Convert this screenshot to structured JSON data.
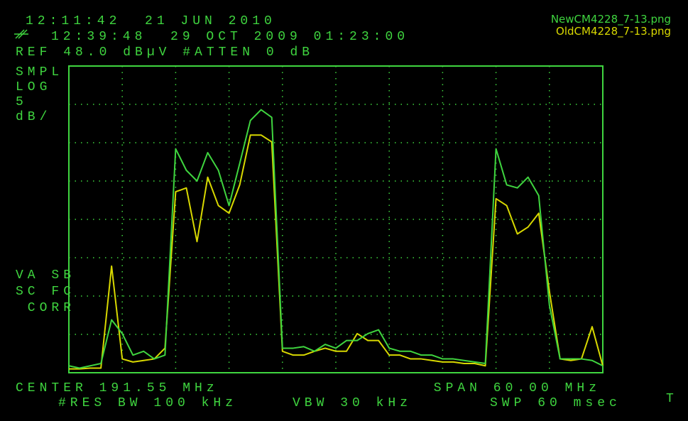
{
  "chart_data": {
    "type": "line",
    "header": {
      "time": "12:11:42  21 JUN 2010",
      "saved": "12:39:48  29 OCT 2009 01:23:00",
      "ref": "REF 48.0 dBµV #ATTEN 0 dB"
    },
    "left_labels": [
      "SMPL",
      "LOG",
      "5",
      "dB/",
      "VA SB",
      "SC FC",
      " CORR"
    ],
    "footer": {
      "center": "CENTER 191.55 MHz",
      "span": "SPAN 60.00 MHz",
      "rbw": "#RES BW 100 kHz",
      "vbw": "VBW 30 kHz",
      "sweep": "SWP 60 msec",
      "marker": "T"
    },
    "x": [
      161.55,
      162.75,
      163.95,
      165.15,
      166.35,
      167.55,
      168.75,
      169.95,
      171.15,
      172.35,
      173.55,
      174.75,
      175.95,
      177.15,
      178.35,
      179.55,
      180.75,
      181.95,
      183.15,
      184.35,
      185.55,
      186.75,
      187.95,
      189.15,
      190.35,
      191.55,
      192.75,
      193.95,
      195.15,
      196.35,
      197.55,
      198.75,
      199.95,
      201.15,
      202.35,
      203.55,
      204.75,
      205.95,
      207.15,
      208.35,
      209.55,
      210.75,
      211.95,
      213.15,
      214.35,
      215.55,
      216.75,
      217.95,
      219.15,
      220.35,
      221.55
    ],
    "series": [
      {
        "name": "NewCM4228_7-13.png",
        "color": "#3fd53f",
        "values": [
          8.9,
          8.6,
          8.9,
          9.2,
          14.9,
          13.1,
          10.3,
          10.8,
          9.8,
          10.3,
          37.2,
          34.4,
          33.0,
          36.7,
          34.4,
          29.8,
          35.3,
          40.9,
          42.3,
          41.3,
          11.2,
          11.2,
          11.4,
          10.8,
          11.7,
          11.2,
          12.2,
          12.2,
          13.1,
          13.6,
          11.2,
          10.8,
          10.8,
          10.3,
          10.3,
          9.8,
          9.8,
          9.6,
          9.4,
          9.2,
          37.2,
          32.5,
          32.1,
          33.5,
          31.1,
          16.8,
          9.8,
          9.8,
          9.8,
          9.6,
          8.9
        ]
      },
      {
        "name": "OldCM4228_7-13.png",
        "color": "#d8d800",
        "values": [
          8.5,
          8.5,
          8.6,
          8.6,
          21.9,
          9.8,
          9.4,
          9.6,
          9.8,
          11.2,
          31.6,
          32.1,
          25.1,
          33.5,
          29.8,
          28.8,
          32.5,
          39.0,
          39.0,
          38.1,
          10.8,
          10.3,
          10.3,
          10.8,
          11.2,
          10.8,
          10.8,
          13.1,
          12.2,
          12.2,
          10.3,
          10.3,
          9.8,
          9.8,
          9.6,
          9.4,
          9.4,
          9.2,
          9.2,
          8.9,
          30.7,
          29.8,
          26.1,
          27.0,
          28.8,
          18.6,
          9.8,
          9.6,
          9.8,
          14.0,
          8.9
        ]
      }
    ],
    "xlim": [
      161.55,
      221.55
    ],
    "ylim": [
      8,
      48
    ],
    "grid": true
  }
}
